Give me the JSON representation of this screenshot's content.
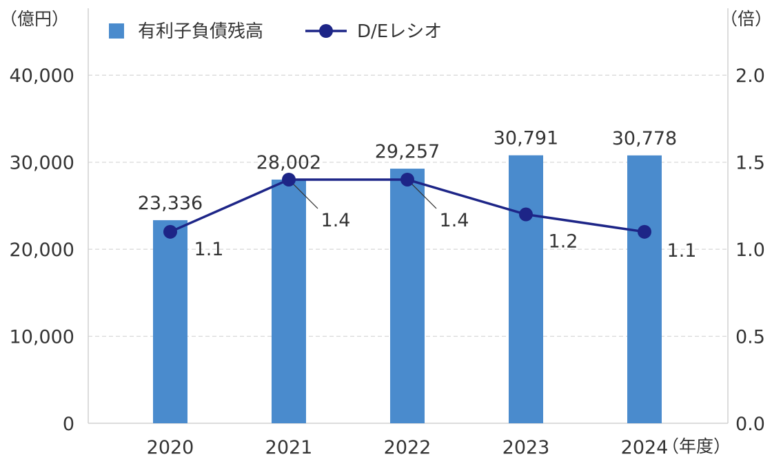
{
  "chart_data": {
    "type": "bar+line",
    "categories": [
      "2020",
      "2021",
      "2022",
      "2023",
      "2024"
    ],
    "x_unit": "（年度）",
    "y_left_unit": "（億円）",
    "y_right_unit": "（倍）",
    "y_left_ticks": [
      "0",
      "10,000",
      "20,000",
      "30,000",
      "40,000"
    ],
    "y_left_tick_values": [
      0,
      10000,
      20000,
      30000,
      40000
    ],
    "y_right_ticks": [
      "0.0",
      "0.5",
      "1.0",
      "1.5",
      "2.0"
    ],
    "y_right_tick_values": [
      0,
      0.5,
      1.0,
      1.5,
      2.0
    ],
    "ylim_left": [
      0,
      45000
    ],
    "ylim_right": [
      0,
      2.25
    ],
    "grid": true,
    "legend_position": "top-left",
    "series": [
      {
        "name": "有利子負債残高",
        "type": "bar",
        "axis": "left",
        "color": "#4a8bcd",
        "values": [
          23336,
          28002,
          29257,
          30791,
          30778
        ],
        "labels": [
          "23,336",
          "28,002",
          "29,257",
          "30,791",
          "30,778"
        ]
      },
      {
        "name": "D/Eレシオ",
        "type": "line",
        "axis": "right",
        "color": "#1d2587",
        "values": [
          1.1,
          1.4,
          1.4,
          1.2,
          1.1
        ],
        "labels": [
          "1.1",
          "1.4",
          "1.4",
          "1.2",
          "1.1"
        ]
      }
    ]
  }
}
